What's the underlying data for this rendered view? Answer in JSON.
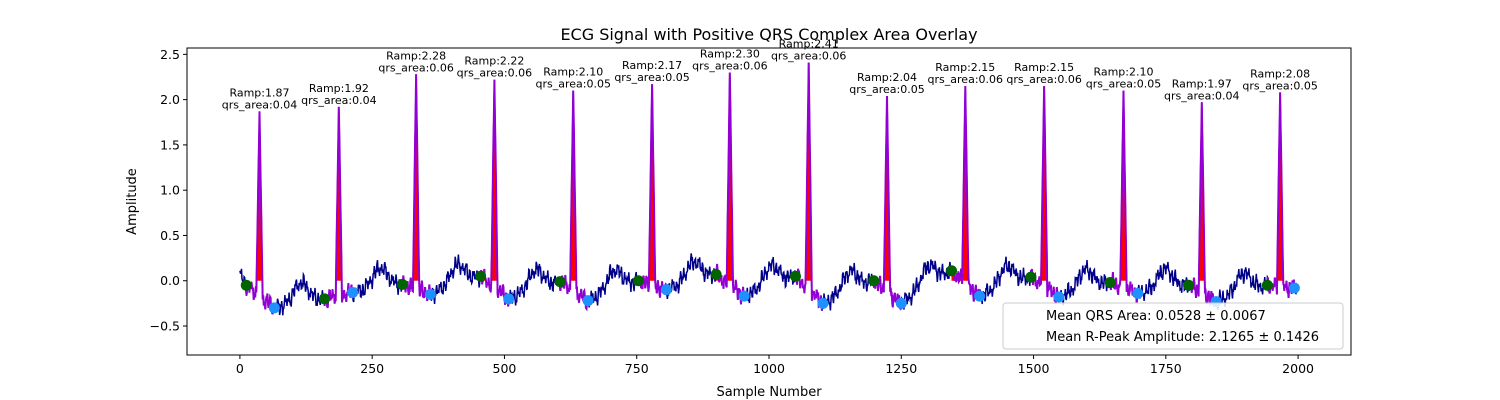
{
  "chart_data": {
    "type": "line",
    "title": "ECG Signal with Positive QRS Complex Area Overlay",
    "xlabel": "Sample Number",
    "ylabel": "Amplitude",
    "xlim": [
      -100,
      2100
    ],
    "ylim": [
      -0.82,
      2.57
    ],
    "x_ticks": [
      0,
      250,
      500,
      750,
      1000,
      1250,
      1500,
      1750,
      2000
    ],
    "y_ticks": [
      -0.5,
      0.0,
      0.5,
      1.0,
      1.5,
      2.0,
      2.5
    ],
    "y_tick_labels": [
      "−0.5",
      "0.0",
      "0.5",
      "1.0",
      "1.5",
      "2.0",
      "2.5"
    ],
    "grid": false,
    "colors": {
      "signal": "#00008b",
      "qrs_segment": "#9400d3",
      "qrs_fill": "#ff0000",
      "q_point": "#006400",
      "s_point": "#1e90ff"
    },
    "beats": [
      {
        "r_x": 37,
        "r_amp": 1.87,
        "q_x": 12,
        "q_y": -0.05,
        "s_x": 65,
        "s_y": -0.3,
        "label_ramp": "Ramp:1.87",
        "label_area": "qrs_area:0.04"
      },
      {
        "r_x": 187,
        "r_amp": 1.92,
        "q_x": 160,
        "q_y": -0.2,
        "s_x": 213,
        "s_y": -0.13,
        "label_ramp": "Ramp:1.92",
        "label_area": "qrs_area:0.04"
      },
      {
        "r_x": 333,
        "r_amp": 2.28,
        "q_x": 307,
        "q_y": -0.04,
        "s_x": 360,
        "s_y": -0.15,
        "label_ramp": "Ramp:2.28",
        "label_area": "qrs_area:0.06"
      },
      {
        "r_x": 481,
        "r_amp": 2.22,
        "q_x": 455,
        "q_y": 0.05,
        "s_x": 508,
        "s_y": -0.2,
        "label_ramp": "Ramp:2.22",
        "label_area": "qrs_area:0.06"
      },
      {
        "r_x": 630,
        "r_amp": 2.1,
        "q_x": 605,
        "q_y": -0.01,
        "s_x": 658,
        "s_y": -0.22,
        "label_ramp": "Ramp:2.10",
        "label_area": "qrs_area:0.05"
      },
      {
        "r_x": 779,
        "r_amp": 2.17,
        "q_x": 753,
        "q_y": 0.0,
        "s_x": 806,
        "s_y": -0.1,
        "label_ramp": "Ramp:2.17",
        "label_area": "qrs_area:0.05"
      },
      {
        "r_x": 926,
        "r_amp": 2.3,
        "q_x": 900,
        "q_y": 0.07,
        "s_x": 953,
        "s_y": -0.17,
        "label_ramp": "Ramp:2.30",
        "label_area": "qrs_area:0.06"
      },
      {
        "r_x": 1075,
        "r_amp": 2.41,
        "q_x": 1050,
        "q_y": 0.05,
        "s_x": 1102,
        "s_y": -0.25,
        "label_ramp": "Ramp:2.41",
        "label_area": "qrs_area:0.06"
      },
      {
        "r_x": 1223,
        "r_amp": 2.04,
        "q_x": 1198,
        "q_y": 0.0,
        "s_x": 1250,
        "s_y": -0.25,
        "label_ramp": "Ramp:2.04",
        "label_area": "qrs_area:0.05"
      },
      {
        "r_x": 1371,
        "r_amp": 2.15,
        "q_x": 1345,
        "q_y": 0.11,
        "s_x": 1398,
        "s_y": -0.17,
        "label_ramp": "Ramp:2.15",
        "label_area": "qrs_area:0.06"
      },
      {
        "r_x": 1520,
        "r_amp": 2.15,
        "q_x": 1495,
        "q_y": 0.04,
        "s_x": 1548,
        "s_y": -0.18,
        "label_ramp": "Ramp:2.15",
        "label_area": "qrs_area:0.06"
      },
      {
        "r_x": 1670,
        "r_amp": 2.1,
        "q_x": 1645,
        "q_y": -0.02,
        "s_x": 1697,
        "s_y": -0.14,
        "label_ramp": "Ramp:2.10",
        "label_area": "qrs_area:0.05"
      },
      {
        "r_x": 1818,
        "r_amp": 1.97,
        "q_x": 1793,
        "q_y": -0.05,
        "s_x": 1845,
        "s_y": -0.23,
        "label_ramp": "Ramp:1.97",
        "label_area": "qrs_area:0.04"
      },
      {
        "r_x": 1966,
        "r_amp": 2.08,
        "q_x": 1942,
        "q_y": -0.05,
        "s_x": 1993,
        "s_y": -0.08,
        "label_ramp": "Ramp:2.08",
        "label_area": "qrs_area:0.05"
      }
    ],
    "legend": {
      "placement": "lower-right",
      "entries": [
        "Mean QRS Area: 0.0528 ± 0.0067",
        "Mean R-Peak Amplitude: 2.1265 ± 0.1426"
      ]
    }
  }
}
